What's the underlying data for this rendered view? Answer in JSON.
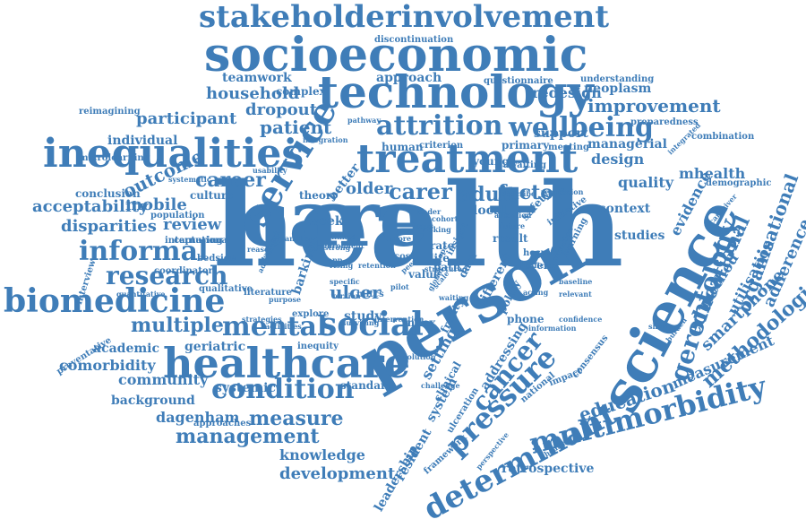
{
  "colors": {
    "word": "#3f7db8",
    "background": "#ffffff"
  },
  "words": [
    "health",
    "care",
    "person",
    "science",
    "socioeconomic",
    "technology",
    "stakeholderinvolvement",
    "inequalities",
    "treatment",
    "service",
    "healthcare",
    "biomedicine",
    "determinant",
    "multimorbidity",
    "pressure",
    "social",
    "condition",
    "gerontology",
    "informal",
    "mental",
    "attrition",
    "wellbeing",
    "research",
    "management",
    "cancer",
    "career",
    "carer",
    "educational",
    "household",
    "participant",
    "patient",
    "improvement",
    "factor",
    "adult",
    "acceptability",
    "mobile",
    "disparities",
    "review",
    "outcome",
    "multiple",
    "measure",
    "education",
    "methodologies",
    "smartphone",
    "organisational",
    "adherence",
    "utilisation",
    "method",
    "measurement",
    "evidence",
    "mhealth",
    "quality",
    "design",
    "context",
    "studies",
    "older",
    "dropout",
    "teamwork",
    "approach",
    "redesign",
    "neoplasm",
    "support",
    "primary",
    "young",
    "local",
    "setting",
    "ulceration",
    "addressing",
    "resident",
    "leadership",
    "system",
    "frailty",
    "phone",
    "index",
    "study",
    "ulcer",
    "community",
    "background",
    "comorbidity",
    "academic",
    "geriatric",
    "dagenham",
    "development",
    "knowledge",
    "retrospective",
    "individual",
    "conclusion",
    "culture",
    "population",
    "coordinator",
    "qualitative",
    "interview",
    "preventative",
    "framework",
    "clinical",
    "national",
    "impact",
    "consensus",
    "rate",
    "policy",
    "different",
    "data",
    "standard",
    "inequity",
    "strategies",
    "approaches",
    "systemic",
    "microlearning",
    "reimagining",
    "discontinuation",
    "questionnaire",
    "understanding",
    "preparedness",
    "pathway",
    "integration",
    "human",
    "criterion",
    "awaiting",
    "meeting",
    "managerial",
    "integrated",
    "combination",
    "demographic",
    "caregiver",
    "regression",
    "theory",
    "better",
    "week",
    "barking",
    "explore",
    "value",
    "life",
    "path",
    "result",
    "safety",
    "initiative",
    "hospital",
    "level",
    "insight",
    "capturing",
    "international",
    "bedside",
    "complex",
    "efficacy",
    "warning",
    "baseline",
    "relevant",
    "acting",
    "challenge",
    "solution",
    "version",
    "confidence",
    "quantitative",
    "tailored",
    "anchor",
    "linked",
    "strong",
    "focus",
    "mltcs",
    "more",
    "cohort",
    "attention",
    "future",
    "cost",
    "peer",
    "pilot",
    "scale",
    "global",
    "waiting",
    "specific",
    "activities",
    "surviving",
    "intervention",
    "systematic",
    "usability",
    "literature",
    "reason",
    "leader",
    "risking",
    "rising",
    "app",
    "retention",
    "scope",
    "structured",
    "variation",
    "additional",
    "enrolment",
    "purpose",
    "describe",
    "information",
    "perspective",
    "healthy",
    "sharing",
    "burden"
  ]
}
